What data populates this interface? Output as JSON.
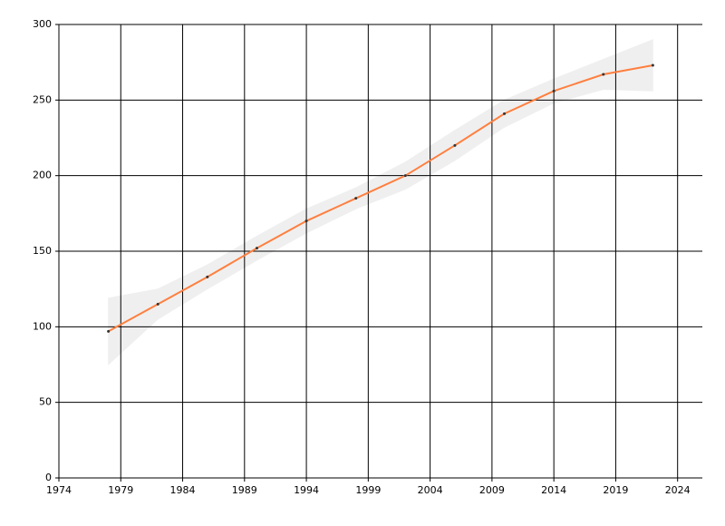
{
  "chart_data": {
    "type": "line",
    "x": [
      1978,
      1982,
      1986,
      1990,
      1994,
      1998,
      2002,
      2006,
      2010,
      2014,
      2018,
      2022
    ],
    "series": [
      {
        "color": "#ff7f3f",
        "values": [
          97,
          115,
          133,
          152,
          170,
          185,
          200,
          220,
          241,
          256,
          267,
          273
        ]
      }
    ],
    "band": {
      "color": "#efefef",
      "upper": [
        119,
        125,
        141,
        160,
        178,
        192,
        209,
        230,
        250,
        264,
        277,
        290
      ],
      "lower": [
        75,
        105,
        125,
        144,
        162,
        178,
        191,
        210,
        232,
        248,
        257,
        256
      ]
    },
    "xlim": [
      1974,
      2026
    ],
    "xticks": [
      1974,
      1979,
      1984,
      1989,
      1994,
      1999,
      2004,
      2009,
      2014,
      2019,
      2024
    ],
    "ylim": [
      0,
      300
    ],
    "yticks": [
      0,
      50,
      100,
      150,
      200,
      250,
      300
    ],
    "grid": true
  }
}
